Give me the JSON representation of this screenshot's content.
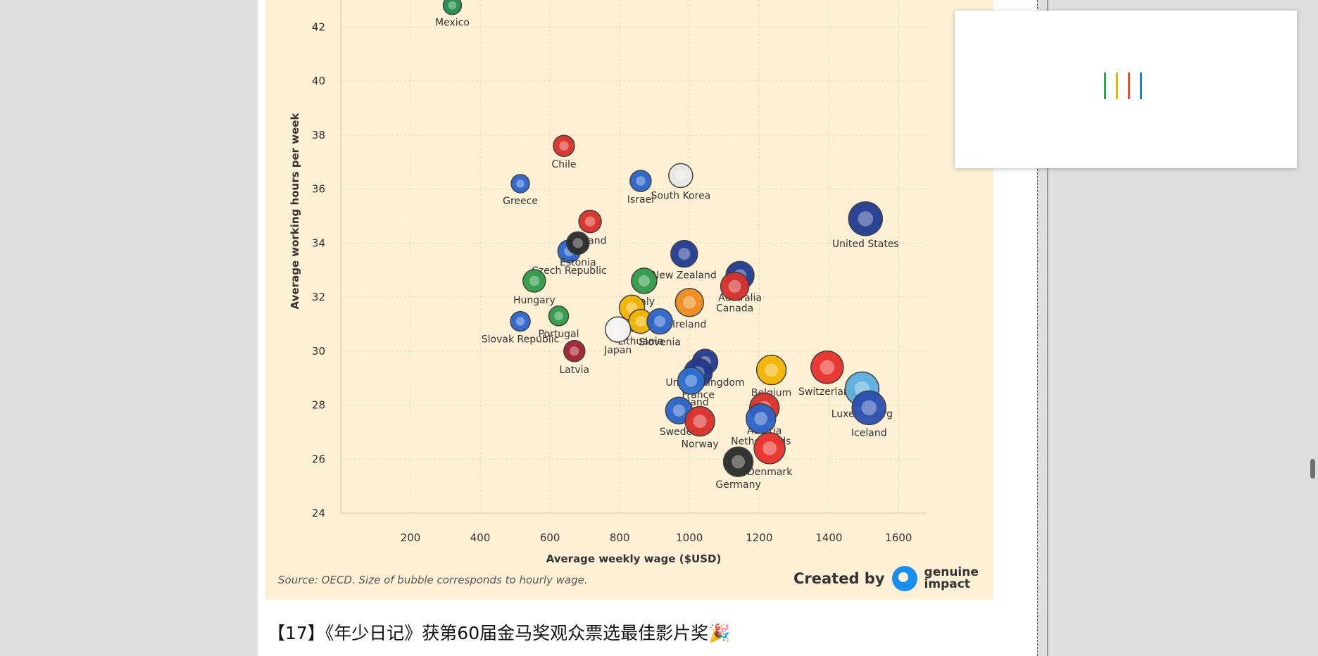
{
  "headline": "【17】《年少日记》获第60届金马奖观众票选最佳影片奖🎉",
  "chart_source": "Source: OECD. Size of bubble corresponds to hourly wage.",
  "credit": {
    "created_by": "Created by",
    "brand_line1": "genuine",
    "brand_line2": "impact"
  },
  "loader": {
    "colors": [
      "#2aa84a",
      "#f1b400",
      "#e8502f",
      "#1c7fd8"
    ]
  },
  "chart_data": {
    "type": "scatter",
    "xlabel": "Average weekly wage ($USD)",
    "ylabel": "Average working hours per week",
    "xlim": [
      0,
      1680
    ],
    "ylim": [
      24,
      43
    ],
    "x_ticks": [
      200,
      400,
      600,
      800,
      1000,
      1200,
      1400,
      1600
    ],
    "y_ticks": [
      24,
      26,
      28,
      30,
      32,
      34,
      36,
      38,
      40,
      42
    ],
    "grid": true,
    "points": [
      {
        "label": "Mexico",
        "x": 320,
        "y": 42.8,
        "r": 13,
        "color": "#1f8f4a"
      },
      {
        "label": "Greece",
        "x": 515,
        "y": 36.2,
        "r": 13,
        "color": "#2a63c9"
      },
      {
        "label": "Chile",
        "x": 640,
        "y": 37.6,
        "r": 15,
        "color": "#d9302a"
      },
      {
        "label": "Israel",
        "x": 860,
        "y": 36.3,
        "r": 15,
        "color": "#2a63c9"
      },
      {
        "label": "South Korea",
        "x": 975,
        "y": 36.5,
        "r": 17,
        "color": "#e8e8e8"
      },
      {
        "label": "Poland",
        "x": 715,
        "y": 34.8,
        "r": 16,
        "color": "#d9302a"
      },
      {
        "label": "Czech Republic",
        "x": 655,
        "y": 33.7,
        "r": 16,
        "color": "#2a63c9"
      },
      {
        "label": "Estonia",
        "x": 680,
        "y": 34.0,
        "r": 16,
        "color": "#2a2a2a"
      },
      {
        "label": "New Zealand",
        "x": 985,
        "y": 33.6,
        "r": 19,
        "color": "#1f3a8f"
      },
      {
        "label": "United States",
        "x": 1505,
        "y": 34.9,
        "r": 24,
        "color": "#1f3a8f"
      },
      {
        "label": "Hungary",
        "x": 555,
        "y": 32.6,
        "r": 16,
        "color": "#2f9a47"
      },
      {
        "label": "Italy",
        "x": 870,
        "y": 32.6,
        "r": 18,
        "color": "#2f9a47"
      },
      {
        "label": "Australia",
        "x": 1145,
        "y": 32.8,
        "r": 20,
        "color": "#1f3a8f"
      },
      {
        "label": "Canada",
        "x": 1130,
        "y": 32.4,
        "r": 20,
        "color": "#d9302a"
      },
      {
        "label": "Spain",
        "x": 835,
        "y": 31.6,
        "r": 18,
        "color": "#f1b400"
      },
      {
        "label": "Ireland",
        "x": 1000,
        "y": 31.8,
        "r": 20,
        "color": "#f08a1c"
      },
      {
        "label": "Portugal",
        "x": 625,
        "y": 31.3,
        "r": 14,
        "color": "#2f9a47"
      },
      {
        "label": "Slovak Republic",
        "x": 515,
        "y": 31.1,
        "r": 14,
        "color": "#2a63c9"
      },
      {
        "label": "Lithuania",
        "x": 860,
        "y": 31.1,
        "r": 17,
        "color": "#f1b400"
      },
      {
        "label": "Slovenia",
        "x": 915,
        "y": 31.1,
        "r": 18,
        "color": "#2a63c9"
      },
      {
        "label": "Japan",
        "x": 795,
        "y": 30.8,
        "r": 18,
        "color": "#f4f4f4"
      },
      {
        "label": "Latvia",
        "x": 670,
        "y": 30.0,
        "r": 15,
        "color": "#a02030"
      },
      {
        "label": "United Kingdom",
        "x": 1045,
        "y": 29.6,
        "r": 18,
        "color": "#1f3a8f"
      },
      {
        "label": "France",
        "x": 1025,
        "y": 29.2,
        "r": 20,
        "color": "#1f3a8f"
      },
      {
        "label": "Finland",
        "x": 1005,
        "y": 28.9,
        "r": 19,
        "color": "#2a6fd0"
      },
      {
        "label": "Belgium",
        "x": 1235,
        "y": 29.3,
        "r": 21,
        "color": "#f1b400"
      },
      {
        "label": "Switzerland",
        "x": 1395,
        "y": 29.4,
        "r": 23,
        "color": "#e8302a"
      },
      {
        "label": "Luxembourg",
        "x": 1495,
        "y": 28.6,
        "r": 24,
        "color": "#5aaee0"
      },
      {
        "label": "Iceland",
        "x": 1515,
        "y": 27.9,
        "r": 24,
        "color": "#2a4fb0"
      },
      {
        "label": "Austria",
        "x": 1215,
        "y": 27.9,
        "r": 21,
        "color": "#d9302a"
      },
      {
        "label": "Netherlands",
        "x": 1205,
        "y": 27.5,
        "r": 21,
        "color": "#2a63c9"
      },
      {
        "label": "Sweden",
        "x": 970,
        "y": 27.8,
        "r": 19,
        "color": "#2a63c9"
      },
      {
        "label": "Norway",
        "x": 1030,
        "y": 27.4,
        "r": 21,
        "color": "#d9302a"
      },
      {
        "label": "Denmark",
        "x": 1230,
        "y": 26.4,
        "r": 22,
        "color": "#e8302a"
      },
      {
        "label": "Germany",
        "x": 1140,
        "y": 25.9,
        "r": 21,
        "color": "#2a2a2a"
      }
    ]
  }
}
